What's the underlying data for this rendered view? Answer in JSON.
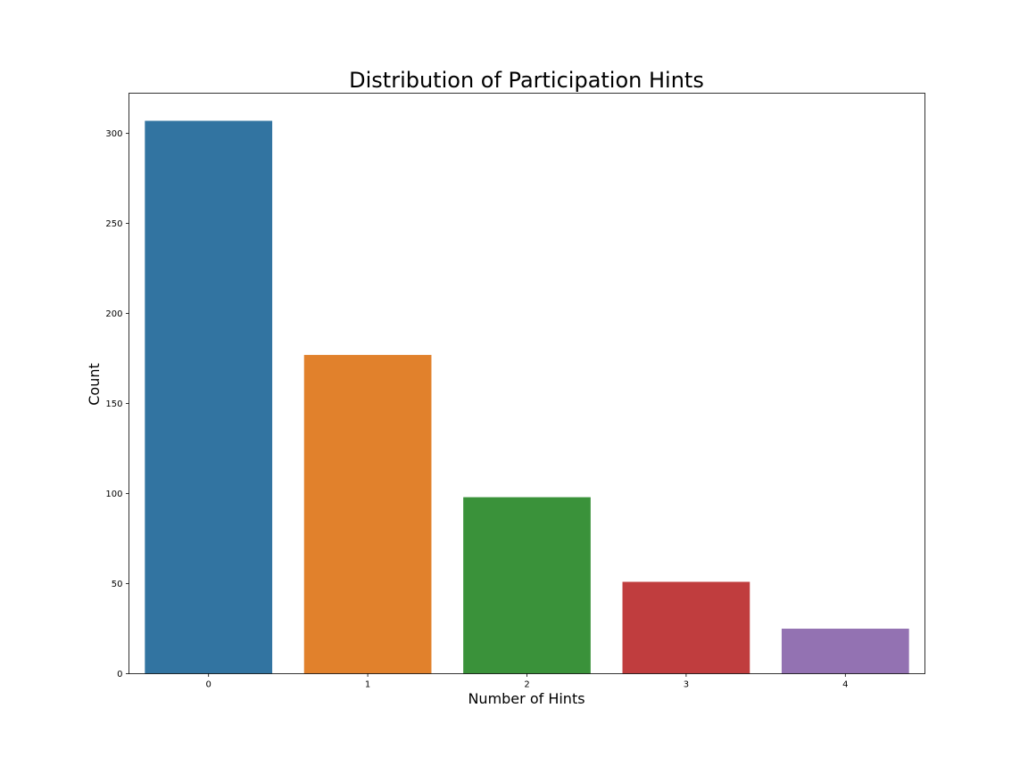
{
  "chart_data": {
    "type": "bar",
    "title": "Distribution of Participation Hints",
    "xlabel": "Number of Hints",
    "ylabel": "Count",
    "categories": [
      "0",
      "1",
      "2",
      "3",
      "4"
    ],
    "values": [
      307,
      177,
      98,
      51,
      25
    ],
    "colors": [
      "#3274a1",
      "#e1812c",
      "#3a923a",
      "#c03d3e",
      "#9372b2"
    ],
    "ylim": [
      0,
      322.35
    ],
    "yticks": [
      0,
      50,
      100,
      150,
      200,
      250,
      300
    ],
    "ytick_labels": [
      "0",
      "50",
      "100",
      "150",
      "200",
      "250",
      "300"
    ],
    "grid": false,
    "legend": "none"
  }
}
